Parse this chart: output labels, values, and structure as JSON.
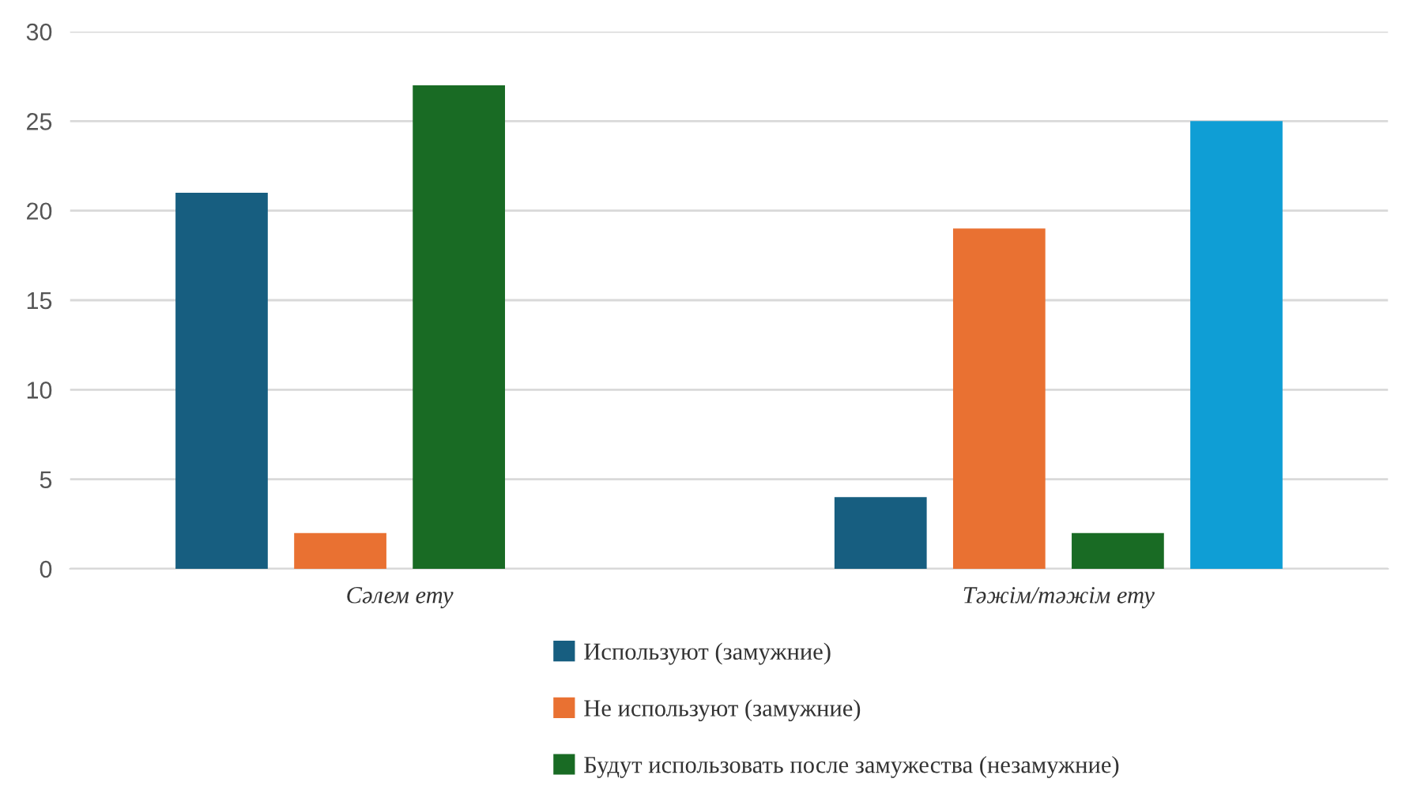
{
  "chart_data": {
    "type": "bar",
    "categories": [
      "Сәлем ету",
      "Тәжім/тәжім ету"
    ],
    "series": [
      {
        "name": "Используют (замужние)",
        "color": "#175e80",
        "values": [
          21,
          4
        ]
      },
      {
        "name": "Не используют (замужние)",
        "color": "#e97132",
        "values": [
          2,
          19
        ]
      },
      {
        "name": "Будут использовать после замужества (незамужние)",
        "color": "#196b24",
        "values": [
          27,
          2
        ]
      },
      {
        "color": "#0f9ed5",
        "values": [
          null,
          25
        ]
      }
    ],
    "ylim": [
      0,
      30
    ],
    "yticks": [
      0,
      5,
      10,
      15,
      20,
      25,
      30
    ],
    "grid": "y",
    "legend": "bottom"
  }
}
